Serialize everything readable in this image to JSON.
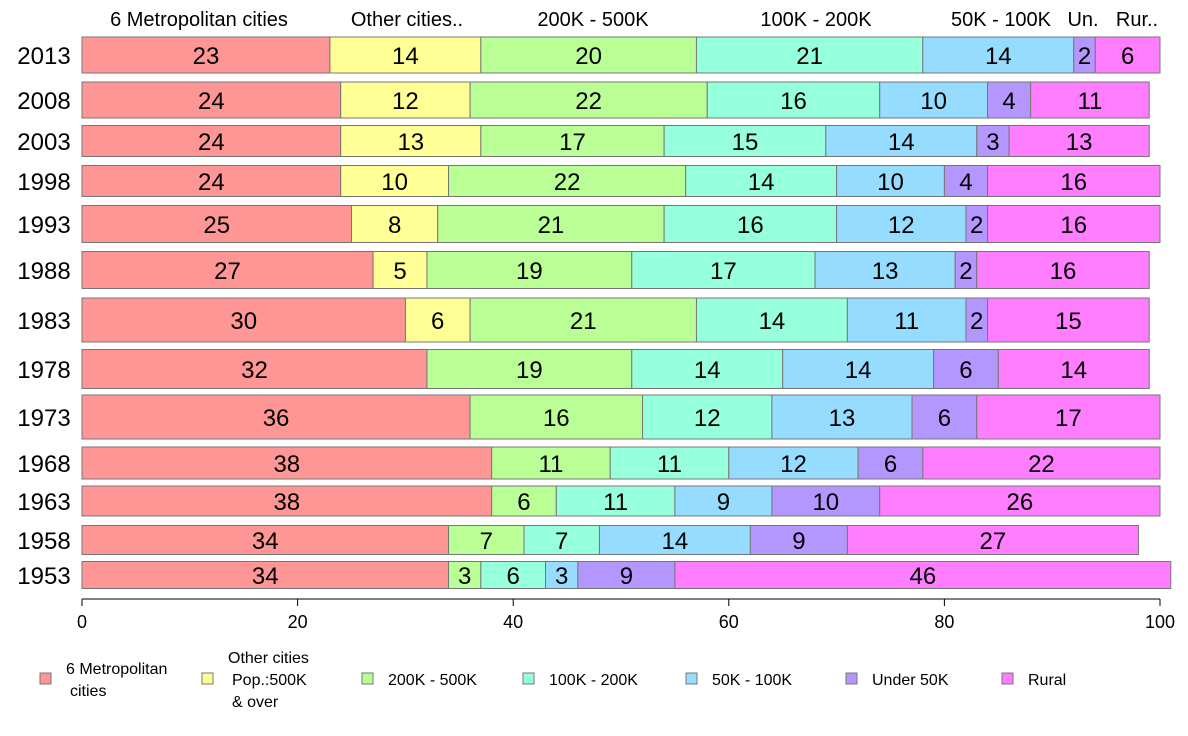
{
  "chart_data": {
    "type": "bar",
    "orientation": "horizontal-stacked",
    "xlim": [
      0,
      100
    ],
    "x_ticks": [
      "0",
      "20",
      "40",
      "60",
      "80",
      "100"
    ],
    "categories": [
      "2013",
      "2008",
      "2003",
      "1998",
      "1993",
      "1988",
      "1983",
      "1978",
      "1973",
      "1968",
      "1963",
      "1958",
      "1953"
    ],
    "column_headers": [
      "6 Metropolitan cities",
      "Other cities..",
      "200K - 500K",
      "100K - 200K",
      "50K - 100K",
      "Un.",
      "Rur.."
    ],
    "series": [
      {
        "name": "6 Metropolitan cities",
        "legend_lines": [
          "6 Metropolitan",
          "cities"
        ],
        "color": "#ff9696",
        "values": [
          23,
          24,
          24,
          24,
          25,
          27,
          30,
          32,
          36,
          38,
          38,
          34,
          34
        ]
      },
      {
        "name": "Other cities Pop.:500K & over",
        "legend_lines": [
          "Other cities",
          "Pop.:500K",
          "& over"
        ],
        "color": "#ffff96",
        "values": [
          14,
          12,
          13,
          10,
          8,
          5,
          6,
          null,
          null,
          null,
          null,
          null,
          null
        ]
      },
      {
        "name": "200K - 500K",
        "legend_lines": [
          "200K - 500K"
        ],
        "color": "#b9ff96",
        "values": [
          20,
          22,
          17,
          22,
          21,
          19,
          21,
          19,
          16,
          11,
          6,
          7,
          3
        ]
      },
      {
        "name": "100K - 200K",
        "legend_lines": [
          "100K - 200K"
        ],
        "color": "#96ffdc",
        "values": [
          21,
          16,
          15,
          14,
          16,
          17,
          14,
          14,
          12,
          11,
          11,
          7,
          6
        ]
      },
      {
        "name": "50K - 100K",
        "legend_lines": [
          "50K - 100K"
        ],
        "color": "#96dcff",
        "values": [
          14,
          10,
          14,
          10,
          12,
          13,
          11,
          14,
          13,
          12,
          9,
          14,
          3
        ]
      },
      {
        "name": "Under 50K",
        "legend_lines": [
          "Under 50K"
        ],
        "color": "#b496ff",
        "values": [
          2,
          4,
          3,
          4,
          2,
          2,
          2,
          6,
          6,
          6,
          10,
          9,
          9
        ]
      },
      {
        "name": "Rural",
        "legend_lines": [
          "Rural"
        ],
        "color": "#ff7dff",
        "values": [
          6,
          11,
          13,
          16,
          16,
          16,
          15,
          14,
          17,
          22,
          26,
          27,
          46
        ]
      }
    ],
    "legend_position": "bottom",
    "grid": false
  }
}
